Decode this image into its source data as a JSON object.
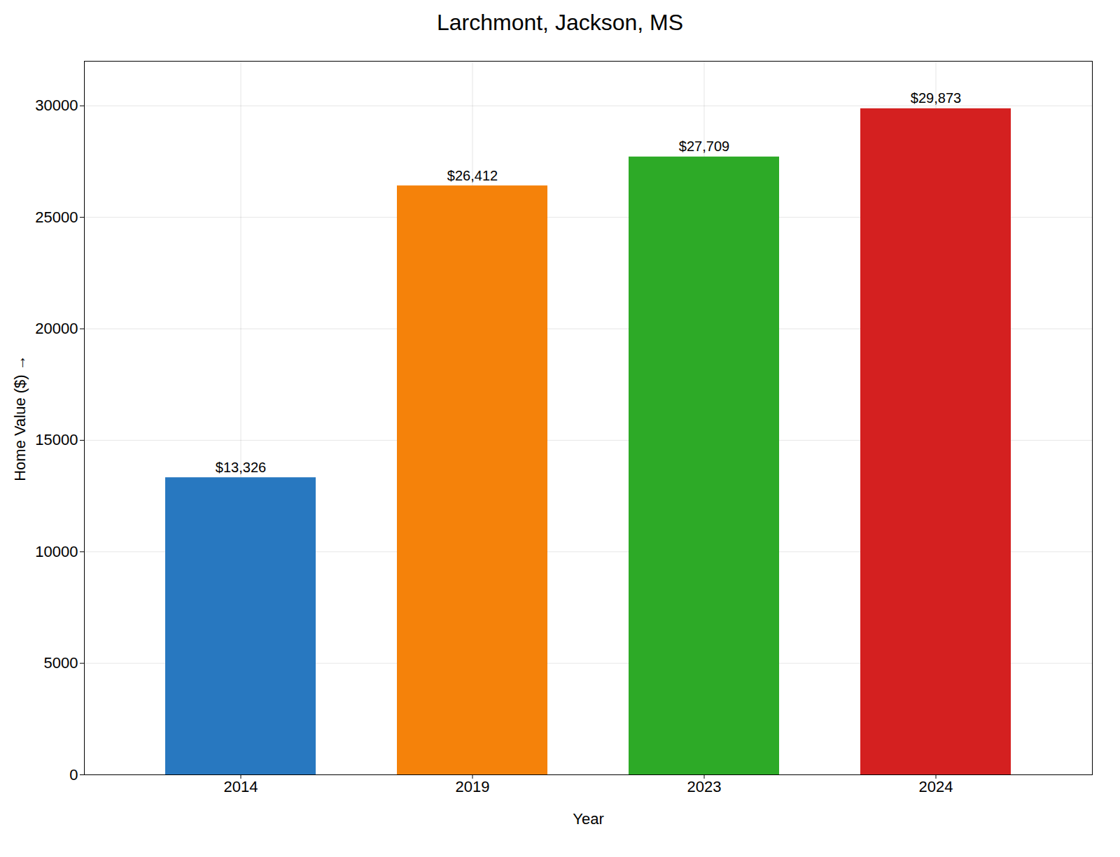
{
  "chart_data": {
    "type": "bar",
    "title": "Larchmont, Jackson, MS",
    "xlabel": "Year",
    "ylabel": "Home Value ($)",
    "categories": [
      "2014",
      "2019",
      "2023",
      "2024"
    ],
    "values": [
      13326,
      26412,
      27709,
      29873
    ],
    "value_labels": [
      "$13,326",
      "$26,412",
      "$27,709",
      "$29,873"
    ],
    "data_labels": true,
    "colors": [
      "#2878c0",
      "#f5820a",
      "#2daa27",
      "#d42020"
    ],
    "ylim": [
      0,
      32000
    ],
    "yticks": [
      0,
      5000,
      10000,
      15000,
      20000,
      25000,
      30000
    ],
    "grid": true
  }
}
